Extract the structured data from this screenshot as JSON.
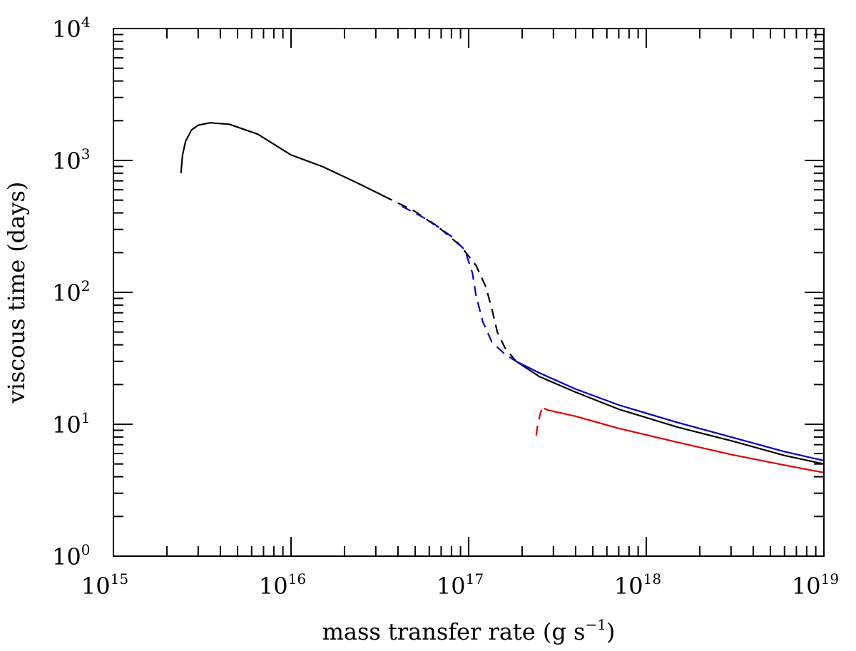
{
  "chart_data": {
    "type": "line",
    "xlabel": "mass transfer rate (g s",
    "xlabel_exp": "−1",
    "xlabel_suffix": ")",
    "ylabel": "viscous time (days)",
    "x_scale": "log",
    "y_scale": "log",
    "xlim": [
      1000000000000000.0,
      1e+19
    ],
    "ylim": [
      1,
      10000
    ],
    "x_ticks": [
      {
        "base": "10",
        "exp": "15",
        "value": 1000000000000000.0
      },
      {
        "base": "10",
        "exp": "16",
        "value": 1e+16
      },
      {
        "base": "10",
        "exp": "17",
        "value": 1e+17
      },
      {
        "base": "10",
        "exp": "18",
        "value": 1e+18
      },
      {
        "base": "10",
        "exp": "19",
        "value": 1e+19
      }
    ],
    "y_ticks": [
      {
        "base": "10",
        "exp": "0",
        "value": 1
      },
      {
        "base": "10",
        "exp": "1",
        "value": 10
      },
      {
        "base": "10",
        "exp": "2",
        "value": 100
      },
      {
        "base": "10",
        "exp": "3",
        "value": 1000
      },
      {
        "base": "10",
        "exp": "4",
        "value": 10000
      }
    ],
    "grid": false,
    "legend": "none",
    "series": [
      {
        "id": "black-solid-low",
        "color": "#000000",
        "dash": "solid",
        "points": [
          [
            2400000000000000.0,
            800
          ],
          [
            2450000000000000.0,
            1100
          ],
          [
            2550000000000000.0,
            1400
          ],
          [
            2750000000000000.0,
            1700
          ],
          [
            3000000000000000.0,
            1850
          ],
          [
            3500000000000000.0,
            1930
          ],
          [
            4500000000000000.0,
            1880
          ],
          [
            6500000000000000.0,
            1580
          ],
          [
            1e+16,
            1100
          ],
          [
            1.5e+16,
            900
          ],
          [
            2e+16,
            750
          ],
          [
            2.5e+16,
            650
          ],
          [
            3.3e+16,
            540
          ]
        ]
      },
      {
        "id": "black-dashed",
        "color": "#000000",
        "dash": "dashed",
        "points": [
          [
            3.3e+16,
            540
          ],
          [
            5e+16,
            410
          ],
          [
            7e+16,
            300
          ],
          [
            9e+16,
            225
          ],
          [
            1.1e+17,
            160
          ],
          [
            1.25e+17,
            110
          ],
          [
            1.35e+17,
            75
          ],
          [
            1.45e+17,
            50
          ],
          [
            1.6e+17,
            38
          ],
          [
            1.85e+17,
            30
          ]
        ]
      },
      {
        "id": "blue-dashed",
        "color": "#0000c8",
        "dash": "dashed",
        "points": [
          [
            4.2e+16,
            450
          ],
          [
            6e+16,
            350
          ],
          [
            8e+16,
            265
          ],
          [
            9.5e+16,
            210
          ],
          [
            1.05e+17,
            140
          ],
          [
            1.1e+17,
            95
          ],
          [
            1.2e+17,
            60
          ],
          [
            1.35e+17,
            42
          ],
          [
            1.6e+17,
            34
          ],
          [
            1.85e+17,
            30
          ]
        ]
      },
      {
        "id": "black-solid-high",
        "color": "#000000",
        "dash": "solid",
        "points": [
          [
            1.85e+17,
            30
          ],
          [
            2.5e+17,
            23
          ],
          [
            4e+17,
            17.5
          ],
          [
            7e+17,
            13
          ],
          [
            1.5e+18,
            9.5
          ],
          [
            3e+18,
            7.5
          ],
          [
            6e+18,
            5.8
          ],
          [
            1e+19,
            5.0
          ]
        ]
      },
      {
        "id": "blue-solid-high",
        "color": "#0000c8",
        "dash": "solid",
        "points": [
          [
            1.85e+17,
            30
          ],
          [
            2.5e+17,
            24.5
          ],
          [
            4e+17,
            18.5
          ],
          [
            7e+17,
            14
          ],
          [
            1.5e+18,
            10.3
          ],
          [
            3e+18,
            8.0
          ],
          [
            6e+18,
            6.2
          ],
          [
            1e+19,
            5.3
          ]
        ]
      },
      {
        "id": "red-dashed",
        "color": "#e00000",
        "dash": "dashed",
        "points": [
          [
            2.4e+17,
            8.2
          ],
          [
            2.45e+17,
            10.0
          ],
          [
            2.55e+17,
            12.5
          ],
          [
            2.65e+17,
            13.2
          ]
        ]
      },
      {
        "id": "red-solid",
        "color": "#e00000",
        "dash": "solid",
        "points": [
          [
            2.65e+17,
            13.2
          ],
          [
            2.8e+17,
            12.8
          ],
          [
            4e+17,
            11.5
          ],
          [
            7e+17,
            9.3
          ],
          [
            1.5e+18,
            7.3
          ],
          [
            3e+18,
            5.9
          ],
          [
            6e+18,
            4.9
          ],
          [
            1e+19,
            4.3
          ]
        ]
      }
    ]
  }
}
